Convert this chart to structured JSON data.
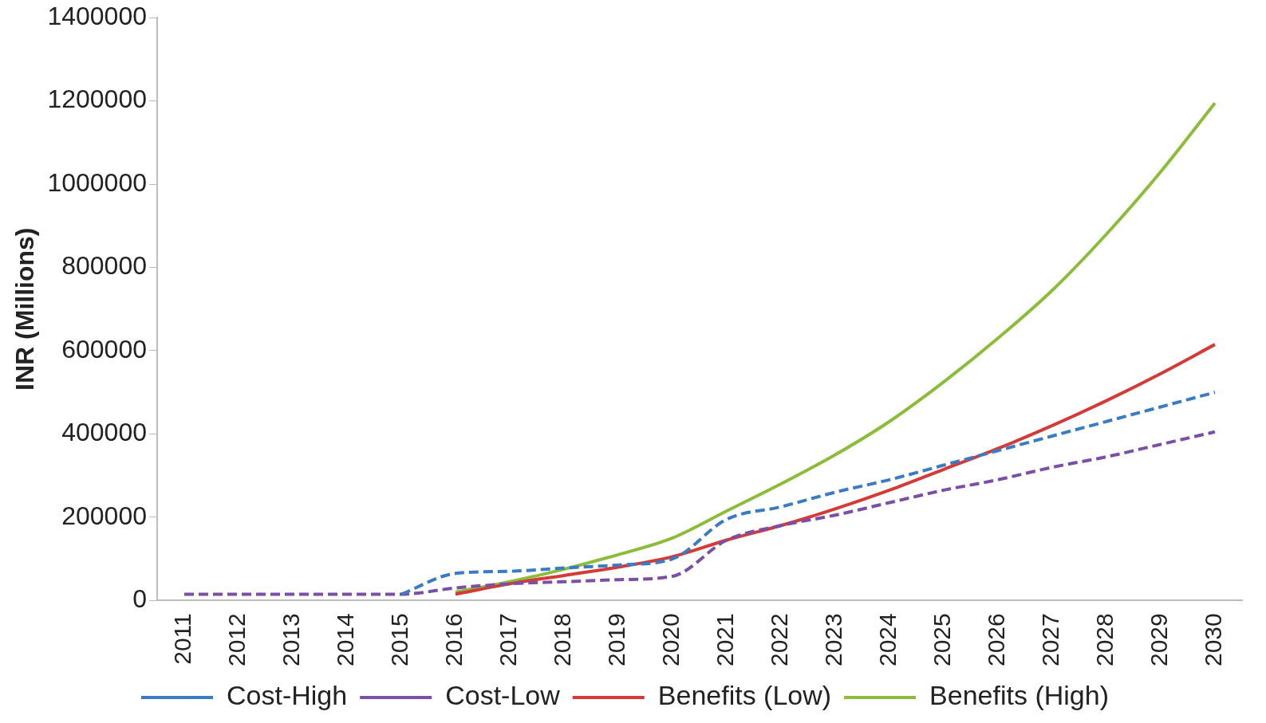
{
  "chart_data": {
    "type": "line",
    "ylabel": "INR (Millions)",
    "categories": [
      "2011",
      "2012",
      "2013",
      "2014",
      "2015",
      "2016",
      "2017",
      "2018",
      "2019",
      "2020",
      "2021",
      "2022",
      "2023",
      "2024",
      "2025",
      "2026",
      "2027",
      "2028",
      "2029",
      "2030"
    ],
    "series": [
      {
        "name": "Cost-High",
        "color": "#3a7cc4",
        "line_style": "dashed",
        "values": [
          null,
          null,
          null,
          null,
          15000,
          65000,
          70000,
          78000,
          85000,
          100000,
          195000,
          225000,
          260000,
          290000,
          325000,
          360000,
          395000,
          430000,
          465000,
          500000
        ]
      },
      {
        "name": "Cost-Low",
        "color": "#7b4fa8",
        "line_style": "dashed",
        "values": [
          15000,
          15000,
          15000,
          15000,
          15000,
          30000,
          40000,
          45000,
          50000,
          58000,
          145000,
          180000,
          205000,
          235000,
          265000,
          290000,
          320000,
          345000,
          375000,
          405000
        ]
      },
      {
        "name": "Benefits (Low)",
        "color": "#d43a36",
        "line_style": "solid",
        "values": [
          null,
          null,
          null,
          null,
          null,
          15000,
          40000,
          60000,
          80000,
          105000,
          145000,
          180000,
          220000,
          265000,
          315000,
          365000,
          420000,
          480000,
          545000,
          615000
        ]
      },
      {
        "name": "Benefits (High)",
        "color": "#8cbd3a",
        "line_style": "solid",
        "values": [
          null,
          null,
          null,
          null,
          null,
          20000,
          45000,
          75000,
          110000,
          150000,
          215000,
          280000,
          350000,
          430000,
          525000,
          630000,
          745000,
          880000,
          1030000,
          1195000
        ]
      }
    ],
    "ylim": [
      0,
      1400000
    ],
    "yticks": [
      0,
      200000,
      400000,
      600000,
      800000,
      1000000,
      1200000,
      1400000
    ],
    "grid": false,
    "legend": "bottom",
    "marker": "none"
  }
}
